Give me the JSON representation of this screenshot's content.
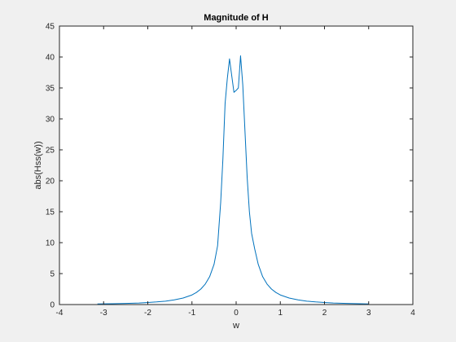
{
  "chart_data": {
    "type": "line",
    "title": "Magnitude of H",
    "xlabel": "w",
    "ylabel": "abs(Hss(w))",
    "xlim": [
      -4,
      4
    ],
    "ylim": [
      0,
      45
    ],
    "xticks": [
      -4,
      -3,
      -2,
      -1,
      0,
      1,
      2,
      3,
      4
    ],
    "yticks": [
      0,
      5,
      10,
      15,
      20,
      25,
      30,
      35,
      40,
      45
    ],
    "grid": false,
    "line_color": "#0072bd",
    "series": [
      {
        "x": [
          -3.14,
          -2.8,
          -2.5,
          -2.2,
          -2.0,
          -1.8,
          -1.6,
          -1.4,
          -1.2,
          -1.0,
          -0.9,
          -0.8,
          -0.7,
          -0.6,
          -0.5,
          -0.42,
          -0.35,
          -0.3,
          -0.25,
          -0.2,
          -0.15,
          -0.1,
          -0.05,
          0.0,
          0.05,
          0.1,
          0.15,
          0.2,
          0.25,
          0.3,
          0.35,
          0.42,
          0.5,
          0.6,
          0.7,
          0.8,
          0.9,
          1.0,
          1.2,
          1.4,
          1.6,
          1.8,
          2.0,
          2.2,
          2.5,
          2.8,
          3.0
        ],
        "y": [
          0.1,
          0.13,
          0.18,
          0.25,
          0.33,
          0.42,
          0.55,
          0.75,
          1.05,
          1.55,
          1.95,
          2.5,
          3.3,
          4.5,
          6.5,
          9.5,
          16.5,
          23.5,
          32.5,
          36.5,
          39.7,
          37.0,
          34.3,
          34.6,
          35.0,
          40.2,
          35.5,
          28.0,
          20.5,
          15.0,
          11.5,
          9.0,
          6.5,
          4.5,
          3.3,
          2.5,
          1.95,
          1.55,
          1.05,
          0.75,
          0.55,
          0.42,
          0.33,
          0.25,
          0.18,
          0.13,
          0.1
        ]
      }
    ]
  }
}
